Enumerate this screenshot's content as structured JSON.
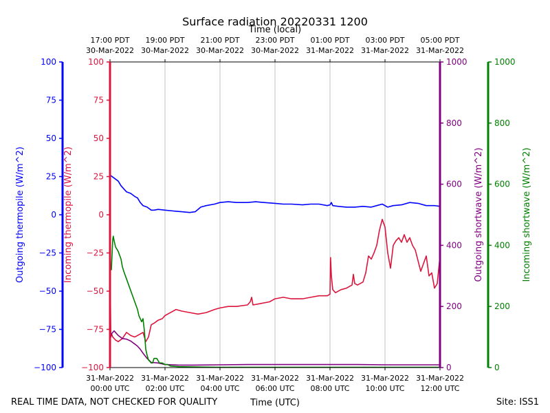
{
  "chart_data": {
    "type": "line",
    "title": "Surface radiation 20220331 1200",
    "top_axis_title": "Time (local)",
    "xlabel": "Time (UTC)",
    "xlim_hours_utc": [
      0,
      12
    ],
    "bottom_ticks": [
      {
        "hour": 0,
        "line1": "31-Mar-2022",
        "line2": "00:00 UTC"
      },
      {
        "hour": 2,
        "line1": "31-Mar-2022",
        "line2": "02:00 UTC"
      },
      {
        "hour": 4,
        "line1": "31-Mar-2022",
        "line2": "04:00 UTC"
      },
      {
        "hour": 6,
        "line1": "31-Mar-2022",
        "line2": "06:00 UTC"
      },
      {
        "hour": 8,
        "line1": "31-Mar-2022",
        "line2": "08:00 UTC"
      },
      {
        "hour": 10,
        "line1": "31-Mar-2022",
        "line2": "10:00 UTC"
      },
      {
        "hour": 12,
        "line1": "31-Mar-2022",
        "line2": "12:00 UTC"
      }
    ],
    "top_ticks": [
      {
        "hour": 0,
        "line1": "17:00 PDT",
        "line2": "30-Mar-2022"
      },
      {
        "hour": 2,
        "line1": "19:00 PDT",
        "line2": "30-Mar-2022"
      },
      {
        "hour": 4,
        "line1": "21:00 PDT",
        "line2": "30-Mar-2022"
      },
      {
        "hour": 6,
        "line1": "23:00 PDT",
        "line2": "30-Mar-2022"
      },
      {
        "hour": 8,
        "line1": "01:00 PDT",
        "line2": "31-Mar-2022"
      },
      {
        "hour": 10,
        "line1": "03:00 PDT",
        "line2": "31-Mar-2022"
      },
      {
        "hour": 12,
        "line1": "05:00 PDT",
        "line2": "31-Mar-2022"
      }
    ],
    "grid_vertical": true,
    "axes": {
      "outgoing_thermopile": {
        "label": "Outgoing thermopile (W/m^2)",
        "color": "#0000ff",
        "ylim": [
          -100,
          100
        ],
        "ticks": [
          -100,
          -75,
          -50,
          -25,
          0,
          25,
          50,
          75,
          100
        ]
      },
      "incoming_thermopile": {
        "label": "Incoming thermopile (W/m^2)",
        "color": "#dc143c",
        "ylim": [
          -100,
          100
        ],
        "ticks": [
          -100,
          -75,
          -50,
          -25,
          0,
          25,
          50,
          75,
          100
        ]
      },
      "outgoing_shortwave": {
        "label": "Outgoing shortwave (W/m^2)",
        "color": "#800080",
        "ylim": [
          0,
          1000
        ],
        "ticks": [
          0,
          200,
          400,
          600,
          800,
          1000
        ]
      },
      "incoming_shortwave": {
        "label": "Incoming shortwave (W/m^2)",
        "color": "#008000",
        "ylim": [
          0,
          1000
        ],
        "ticks": [
          0,
          200,
          400,
          600,
          800,
          1000
        ]
      }
    },
    "series": [
      {
        "axis": "outgoing_thermopile",
        "color": "#0000ff",
        "x": [
          0,
          0.15,
          0.3,
          0.4,
          0.5,
          0.6,
          0.75,
          0.9,
          1.0,
          1.1,
          1.2,
          1.35,
          1.5,
          1.6,
          1.75,
          2.0,
          2.3,
          2.6,
          2.9,
          3.1,
          3.3,
          3.5,
          3.8,
          4.0,
          4.3,
          4.6,
          5.0,
          5.3,
          5.6,
          6.0,
          6.3,
          6.6,
          7.0,
          7.3,
          7.6,
          7.9,
          8.0,
          8.05,
          8.1,
          8.3,
          8.6,
          8.9,
          9.2,
          9.5,
          9.7,
          9.9,
          10.1,
          10.3,
          10.6,
          10.9,
          11.2,
          11.5,
          11.8,
          12.0
        ],
        "y": [
          26,
          24,
          22,
          19,
          17,
          15,
          14,
          12,
          11,
          8,
          6,
          5,
          3,
          3,
          3.5,
          3,
          2.5,
          2,
          1.5,
          2,
          5,
          6,
          7,
          8,
          8.5,
          8,
          8,
          8.5,
          8,
          7.5,
          7,
          7,
          6.5,
          7,
          7,
          6,
          6.5,
          8,
          6,
          5.5,
          5,
          5,
          5.5,
          5,
          6,
          7,
          5,
          6,
          6.5,
          8,
          7.5,
          6,
          6,
          5.5
        ]
      },
      {
        "axis": "incoming_thermopile",
        "color": "#dc143c",
        "x": [
          0,
          0.03,
          0.06,
          0.1,
          0.2,
          0.3,
          0.45,
          0.6,
          0.75,
          0.9,
          1.0,
          1.1,
          1.2,
          1.3,
          1.4,
          1.5,
          1.6,
          1.75,
          1.9,
          2.0,
          2.2,
          2.4,
          2.6,
          2.9,
          3.2,
          3.5,
          3.8,
          4.0,
          4.3,
          4.6,
          5.0,
          5.1,
          5.15,
          5.2,
          5.5,
          5.8,
          6.0,
          6.3,
          6.6,
          7.0,
          7.3,
          7.6,
          7.9,
          8.0,
          8.02,
          8.05,
          8.1,
          8.2,
          8.4,
          8.6,
          8.8,
          8.85,
          8.9,
          9.0,
          9.2,
          9.3,
          9.4,
          9.5,
          9.6,
          9.7,
          9.8,
          9.9,
          10.0,
          10.1,
          10.2,
          10.3,
          10.4,
          10.5,
          10.6,
          10.7,
          10.8,
          10.9,
          11.0,
          11.1,
          11.2,
          11.3,
          11.4,
          11.5,
          11.6,
          11.7,
          11.8,
          11.9,
          12.0
        ],
        "y": [
          -27,
          -80,
          -78,
          -80,
          -82,
          -83,
          -81,
          -77,
          -79,
          -80,
          -79,
          -78,
          -77,
          -83,
          -80,
          -72,
          -71,
          -69,
          -68,
          -66,
          -64,
          -62,
          -63,
          -64,
          -65,
          -64,
          -62,
          -61,
          -60,
          -60,
          -59,
          -57,
          -54,
          -59,
          -58,
          -57,
          -55,
          -54,
          -55,
          -55,
          -54,
          -53,
          -53,
          -52,
          -28,
          -40,
          -49,
          -51,
          -49,
          -48,
          -46,
          -39,
          -45,
          -46,
          -44,
          -38,
          -27,
          -29,
          -25,
          -20,
          -10,
          -3,
          -8,
          -25,
          -35,
          -20,
          -17,
          -15,
          -18,
          -13,
          -18,
          -15,
          -20,
          -23,
          -30,
          -37,
          -32,
          -27,
          -40,
          -38,
          -48,
          -45,
          -27
        ]
      },
      {
        "axis": "outgoing_shortwave",
        "color": "#800080",
        "x": [
          0,
          0.05,
          0.1,
          0.15,
          0.3,
          0.45,
          0.6,
          0.75,
          0.9,
          1.0,
          1.1,
          1.2,
          1.35,
          1.5,
          1.75,
          2.0,
          2.5,
          3.0,
          4.0,
          5.0,
          6.0,
          7.0,
          8.0,
          9.0,
          10.0,
          11.0,
          12.0
        ],
        "y": [
          90,
          110,
          115,
          120,
          105,
          95,
          93,
          87,
          77,
          70,
          60,
          47,
          30,
          17,
          15,
          10,
          8,
          8,
          9,
          10,
          10,
          10,
          10,
          10,
          9,
          9,
          9
        ]
      },
      {
        "axis": "incoming_shortwave",
        "color": "#008000",
        "x": [
          0,
          0.05,
          0.1,
          0.12,
          0.15,
          0.2,
          0.3,
          0.4,
          0.45,
          0.5,
          0.6,
          0.7,
          0.8,
          0.9,
          1.0,
          1.05,
          1.15,
          1.2,
          1.25,
          1.3,
          1.35,
          1.4,
          1.45,
          1.5,
          1.55,
          1.6,
          1.7,
          1.8,
          1.9,
          2.0,
          2.1,
          2.2,
          2.5,
          3.0,
          4.0,
          5.0,
          6.0,
          7.0,
          8.0,
          9.0,
          10.0,
          11.0,
          12.0
        ],
        "y": [
          350,
          320,
          420,
          430,
          415,
          395,
          380,
          355,
          330,
          315,
          290,
          265,
          240,
          215,
          190,
          170,
          150,
          160,
          120,
          60,
          40,
          25,
          20,
          15,
          15,
          30,
          30,
          15,
          15,
          10,
          10,
          5,
          3,
          2,
          1,
          1,
          1,
          1,
          1,
          1,
          1,
          1,
          1
        ]
      }
    ]
  },
  "footer": {
    "left_note": "REAL TIME DATA, NOT CHECKED FOR QUALITY",
    "site": "Site: ISS1"
  }
}
